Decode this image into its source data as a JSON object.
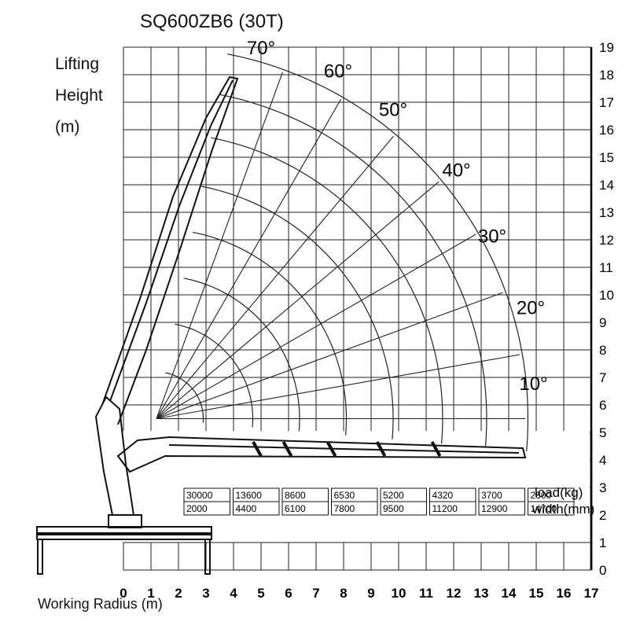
{
  "title": "SQ600ZB6 (30T)",
  "y_axis_label_lines": [
    "Lifting",
    "Height",
    "(m)"
  ],
  "x_axis_label": "Working Radius (m)",
  "chart_data": {
    "type": "table",
    "title": "SQ600ZB6 (30T)",
    "xlabel": "Working Radius (m)",
    "ylabel": "Lifting Height (m)",
    "xlim": [
      0,
      17
    ],
    "ylim": [
      0,
      19
    ],
    "x_ticks": [
      "0",
      "1",
      "2",
      "3",
      "4",
      "5",
      "6",
      "7",
      "8",
      "9",
      "10",
      "11",
      "12",
      "13",
      "14",
      "15",
      "16",
      "17"
    ],
    "y_ticks": [
      "0",
      "1",
      "2",
      "3",
      "4",
      "5",
      "6",
      "7",
      "8",
      "9",
      "10",
      "11",
      "12",
      "13",
      "14",
      "15",
      "16",
      "17",
      "18",
      "19"
    ],
    "grid": true,
    "boom_angles": [
      "10°",
      "20°",
      "30°",
      "40°",
      "50°",
      "60°",
      "70°"
    ],
    "load_row_label": "load(kg)",
    "width_row_label": "width(mm)",
    "load_kg": [
      "30000",
      "13600",
      "8600",
      "6530",
      "5200",
      "4320",
      "3700",
      "2800"
    ],
    "width_mm": [
      "2000",
      "4400",
      "6100",
      "7800",
      "9500",
      "11200",
      "12900",
      "14700"
    ]
  }
}
